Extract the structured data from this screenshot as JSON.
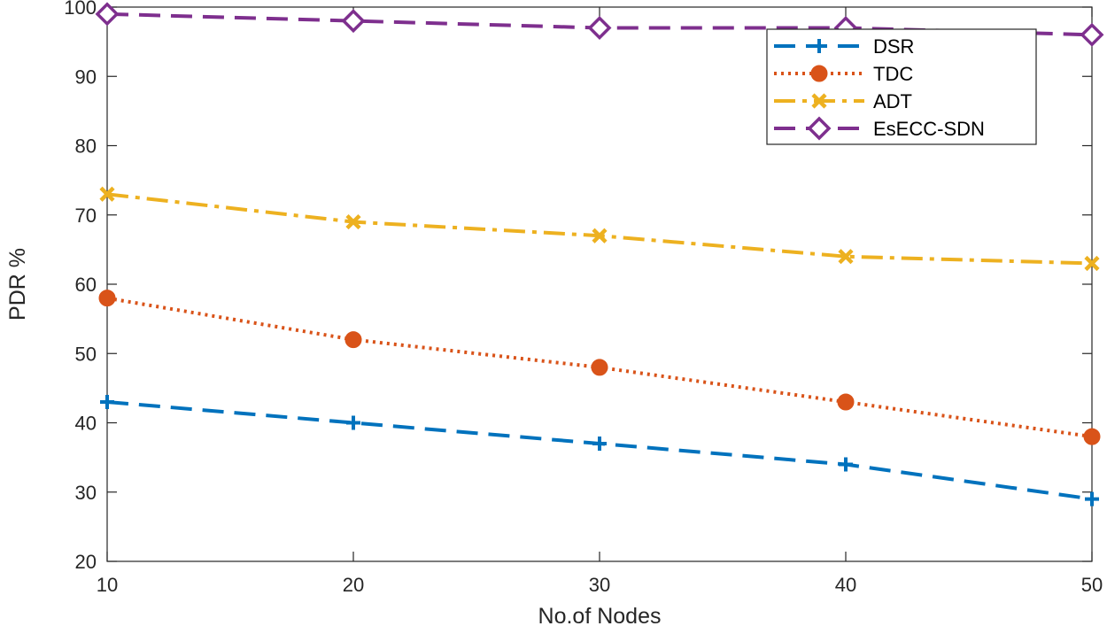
{
  "chart_data": {
    "type": "line",
    "title": "",
    "xlabel": "No.of Nodes",
    "ylabel": "PDR %",
    "x": [
      10,
      20,
      30,
      40,
      50
    ],
    "xlim": [
      10,
      50
    ],
    "ylim": [
      20,
      100
    ],
    "xticks": [
      "10",
      "20",
      "30",
      "40",
      "50"
    ],
    "yticks": [
      "20",
      "30",
      "40",
      "50",
      "60",
      "70",
      "80",
      "90",
      "100"
    ],
    "grid": false,
    "legend_position": "top-right",
    "series": [
      {
        "name": "DSR",
        "values": [
          43,
          40,
          37,
          34,
          29
        ],
        "color": "#0072BD",
        "line_style": "dashed",
        "marker": "plus"
      },
      {
        "name": "TDC",
        "values": [
          58,
          52,
          48,
          43,
          38
        ],
        "color": "#D95319",
        "line_style": "dotted",
        "marker": "circle"
      },
      {
        "name": "ADT",
        "values": [
          73,
          69,
          67,
          64,
          63
        ],
        "color": "#EDB120",
        "line_style": "dash-dot",
        "marker": "x"
      },
      {
        "name": "EsECC-SDN",
        "values": [
          99,
          98,
          97,
          97,
          96
        ],
        "color": "#7E2F8E",
        "line_style": "dashed",
        "marker": "diamond"
      }
    ]
  }
}
